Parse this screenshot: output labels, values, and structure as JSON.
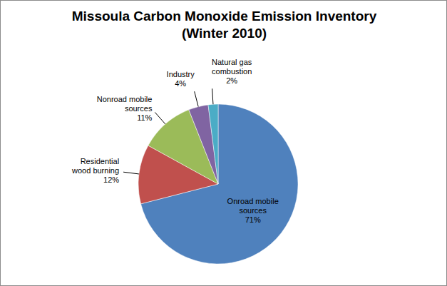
{
  "chart_data": {
    "type": "pie",
    "title": "Missoula Carbon Monoxide Emission Inventory (Winter 2010)",
    "categories": [
      "Onroad mobile sources",
      "Residential wood burning",
      "Nonroad mobile sources",
      "Industry",
      "Natural gas combustion"
    ],
    "values": [
      71,
      12,
      11,
      4,
      2
    ],
    "value_labels": [
      "71%",
      "12%",
      "11%",
      "4%",
      "2%"
    ],
    "colors": [
      "#4f81bd",
      "#c0504d",
      "#9bbb59",
      "#8064a2",
      "#4bacc6"
    ],
    "data_labels": true
  }
}
